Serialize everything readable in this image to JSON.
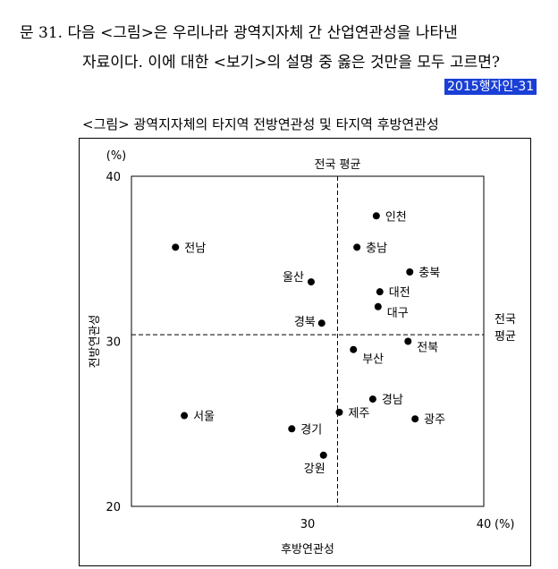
{
  "question": {
    "line1": "문 31. 다음 <그림>은 우리나라 광역지자체 간 산업연관성을 나타낸",
    "line2": "자료이다. 이에 대한 <보기>의 설명 중 옳은 것만을 모두 고르면?",
    "tag": "2015행자인-31"
  },
  "figure_title": "<그림> 광역지자체의 타지역 전방연관성 및 타지역 후방연관성",
  "colors": {
    "tag_bg": "#1a3fd6",
    "point": "#000000"
  },
  "chart_data": {
    "type": "scatter",
    "title": "<그림> 광역지자체의 타지역 전방연관성 및 타지역 후방연관성",
    "xlabel": "후방연관성",
    "ylabel": "전방연관성",
    "x_unit": "(%)",
    "y_unit": "(%)",
    "xlim": [
      20,
      40
    ],
    "ylim": [
      20,
      40
    ],
    "x_ticks": [
      30,
      40
    ],
    "y_ticks": [
      20,
      30,
      40
    ],
    "grid": false,
    "reference_lines": {
      "x_mean": 31.7,
      "y_mean": 30.4,
      "x_mean_label": "전국 평균",
      "y_mean_label_line1": "전국",
      "y_mean_label_line2": "평균"
    },
    "points": [
      {
        "label": "인천",
        "x": 33.9,
        "y": 37.6
      },
      {
        "label": "전남",
        "x": 22.5,
        "y": 35.7
      },
      {
        "label": "충남",
        "x": 32.8,
        "y": 35.7
      },
      {
        "label": "충북",
        "x": 35.8,
        "y": 34.2
      },
      {
        "label": "울산",
        "x": 30.2,
        "y": 33.6
      },
      {
        "label": "대전",
        "x": 34.1,
        "y": 33.0
      },
      {
        "label": "대구",
        "x": 34.0,
        "y": 32.1
      },
      {
        "label": "경북",
        "x": 30.8,
        "y": 31.1
      },
      {
        "label": "전북",
        "x": 35.7,
        "y": 30.0
      },
      {
        "label": "부산",
        "x": 32.6,
        "y": 29.5
      },
      {
        "label": "경남",
        "x": 33.7,
        "y": 26.5
      },
      {
        "label": "서울",
        "x": 23.0,
        "y": 25.5
      },
      {
        "label": "제주",
        "x": 31.8,
        "y": 25.7
      },
      {
        "label": "광주",
        "x": 36.1,
        "y": 25.3
      },
      {
        "label": "경기",
        "x": 29.1,
        "y": 24.7
      },
      {
        "label": "강원",
        "x": 30.9,
        "y": 23.1
      }
    ]
  }
}
